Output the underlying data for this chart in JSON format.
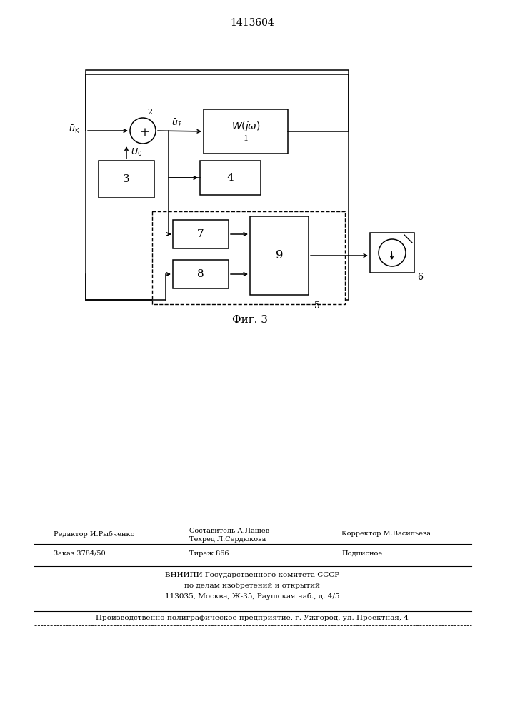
{
  "title": "1413604",
  "fig_caption": "Фиг. 3",
  "bg": "#ffffff",
  "lc": "#000000",
  "footer_r1_left": "Редактор И.Рыбченко",
  "footer_r1_c1": "Составитель А.Лащев",
  "footer_r1_c2": "Техред Л.Сердюкова",
  "footer_r1_right": "Корректор М.Васильева",
  "footer_r2_left": "Заказ 3784/50",
  "footer_r2_center": "Тираж 866",
  "footer_r2_right": "Подписное",
  "footer_vniipи1": "ВНИИПИ Государственного комитета СССР",
  "footer_vniipи2": "по делам изобретений и открытий",
  "footer_vniipи3": "113035, Москва, Ж-35, Раушская наб., д. 4/5",
  "footer_bottom": "Производственно-полиграфическое предприятие, г. Ужгород, ул. Проектная, 4"
}
